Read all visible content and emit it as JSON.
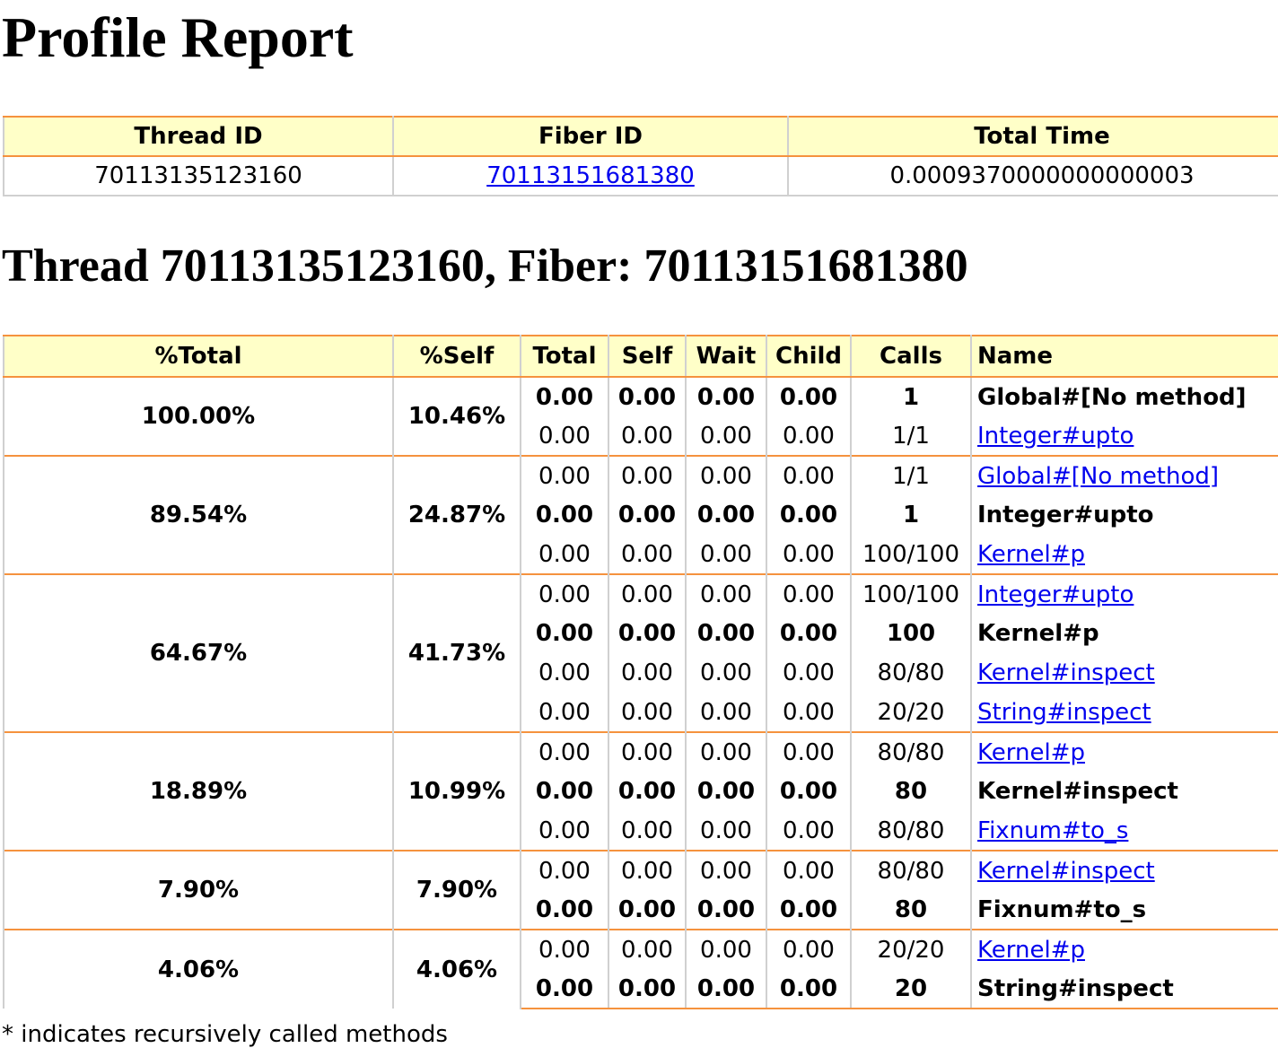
{
  "page_title": "Profile Report",
  "summary": {
    "headers": [
      "Thread ID",
      "Fiber ID",
      "Total Time"
    ],
    "thread_id": "70113135123160",
    "fiber_id": "70113151681380",
    "total_time": "0.0009370000000000003"
  },
  "section_title": "Thread 70113135123160, Fiber: 70113151681380",
  "profile": {
    "headers": [
      "%Total",
      "%Self",
      "Total",
      "Self",
      "Wait",
      "Child",
      "Calls",
      "Name"
    ],
    "groups": [
      {
        "pct_total": "100.00%",
        "pct_self": "10.46%",
        "rows": [
          {
            "kind": "method",
            "total": "0.00",
            "self": "0.00",
            "wait": "0.00",
            "child": "0.00",
            "calls": "1",
            "name": "Global#[No method]"
          },
          {
            "kind": "callee",
            "total": "0.00",
            "self": "0.00",
            "wait": "0.00",
            "child": "0.00",
            "calls": "1/1",
            "name": "Integer#upto"
          }
        ]
      },
      {
        "pct_total": "89.54%",
        "pct_self": "24.87%",
        "rows": [
          {
            "kind": "caller",
            "total": "0.00",
            "self": "0.00",
            "wait": "0.00",
            "child": "0.00",
            "calls": "1/1",
            "name": "Global#[No method]"
          },
          {
            "kind": "method",
            "total": "0.00",
            "self": "0.00",
            "wait": "0.00",
            "child": "0.00",
            "calls": "1",
            "name": "Integer#upto"
          },
          {
            "kind": "callee",
            "total": "0.00",
            "self": "0.00",
            "wait": "0.00",
            "child": "0.00",
            "calls": "100/100",
            "name": "Kernel#p"
          }
        ]
      },
      {
        "pct_total": "64.67%",
        "pct_self": "41.73%",
        "rows": [
          {
            "kind": "caller",
            "total": "0.00",
            "self": "0.00",
            "wait": "0.00",
            "child": "0.00",
            "calls": "100/100",
            "name": "Integer#upto"
          },
          {
            "kind": "method",
            "total": "0.00",
            "self": "0.00",
            "wait": "0.00",
            "child": "0.00",
            "calls": "100",
            "name": "Kernel#p"
          },
          {
            "kind": "callee",
            "total": "0.00",
            "self": "0.00",
            "wait": "0.00",
            "child": "0.00",
            "calls": "80/80",
            "name": "Kernel#inspect"
          },
          {
            "kind": "callee",
            "total": "0.00",
            "self": "0.00",
            "wait": "0.00",
            "child": "0.00",
            "calls": "20/20",
            "name": "String#inspect"
          }
        ]
      },
      {
        "pct_total": "18.89%",
        "pct_self": "10.99%",
        "rows": [
          {
            "kind": "caller",
            "total": "0.00",
            "self": "0.00",
            "wait": "0.00",
            "child": "0.00",
            "calls": "80/80",
            "name": "Kernel#p"
          },
          {
            "kind": "method",
            "total": "0.00",
            "self": "0.00",
            "wait": "0.00",
            "child": "0.00",
            "calls": "80",
            "name": "Kernel#inspect"
          },
          {
            "kind": "callee",
            "total": "0.00",
            "self": "0.00",
            "wait": "0.00",
            "child": "0.00",
            "calls": "80/80",
            "name": "Fixnum#to_s"
          }
        ]
      },
      {
        "pct_total": "7.90%",
        "pct_self": "7.90%",
        "rows": [
          {
            "kind": "caller",
            "total": "0.00",
            "self": "0.00",
            "wait": "0.00",
            "child": "0.00",
            "calls": "80/80",
            "name": "Kernel#inspect"
          },
          {
            "kind": "method",
            "total": "0.00",
            "self": "0.00",
            "wait": "0.00",
            "child": "0.00",
            "calls": "80",
            "name": "Fixnum#to_s"
          }
        ]
      },
      {
        "pct_total": "4.06%",
        "pct_self": "4.06%",
        "rows": [
          {
            "kind": "caller",
            "total": "0.00",
            "self": "0.00",
            "wait": "0.00",
            "child": "0.00",
            "calls": "20/20",
            "name": "Kernel#p"
          },
          {
            "kind": "method",
            "total": "0.00",
            "self": "0.00",
            "wait": "0.00",
            "child": "0.00",
            "calls": "20",
            "name": "String#inspect"
          }
        ]
      }
    ]
  },
  "footnote": "* indicates recursively called methods"
}
